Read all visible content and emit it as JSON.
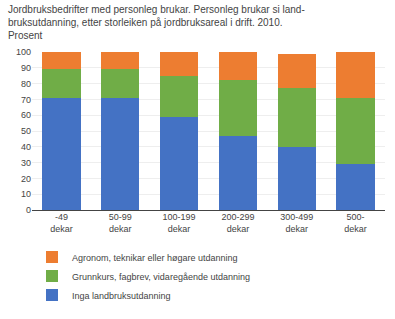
{
  "chart_data": {
    "type": "bar",
    "stacked": true,
    "title": "Jordbruksbedrifter med personleg brukar. Personleg brukar si land-\nbruksutdanning, etter storleiken på jordbruksareal i drift. 2010.\nProsent",
    "categories": [
      "-49\ndekar",
      "50-99\ndekar",
      "100-199\ndekar",
      "200-299\ndekar",
      "300-499\ndekar",
      "500-\ndekar"
    ],
    "series": [
      {
        "name": "Inga landbruksutdanning",
        "color": "#4472C4",
        "values": [
          71,
          71,
          59,
          47,
          40,
          29
        ]
      },
      {
        "name": "Grunnkurs, fagbrev, vidaregående utdanning",
        "color": "#70AD47",
        "values": [
          18,
          18,
          26,
          35,
          37,
          42
        ]
      },
      {
        "name": "Agronom, teknikar eller høgare utdanning",
        "color": "#ED7D31",
        "values": [
          11,
          11,
          15,
          18,
          22,
          29
        ]
      }
    ],
    "ylim": [
      0,
      100
    ],
    "yticks": [
      0,
      10,
      20,
      30,
      40,
      50,
      60,
      70,
      80,
      90,
      100
    ],
    "grid": true,
    "legend": "bottom"
  }
}
